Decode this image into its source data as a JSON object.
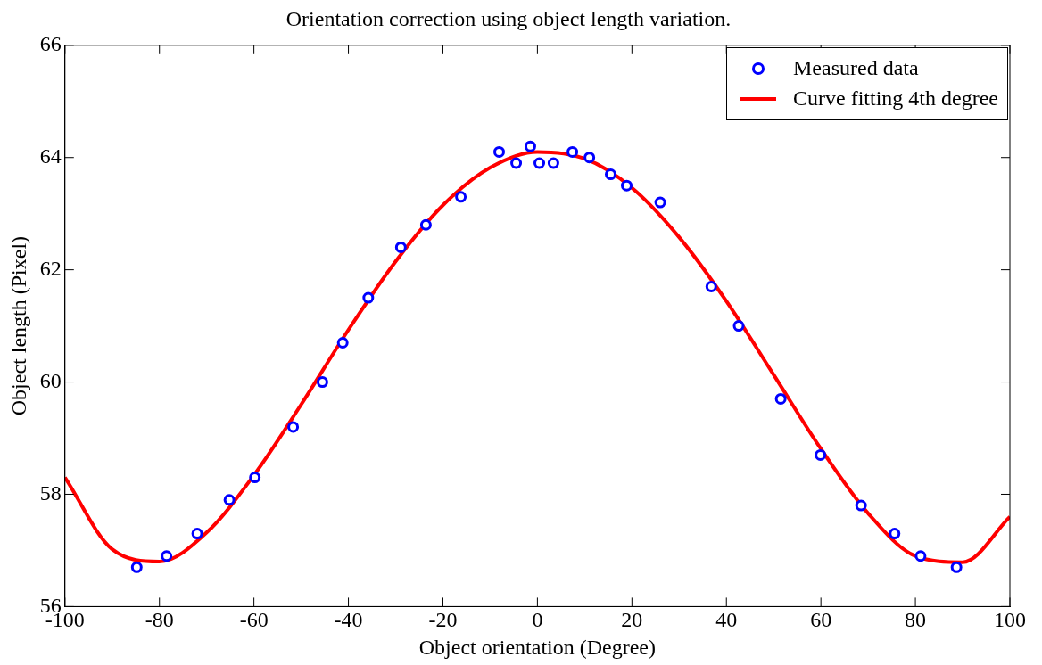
{
  "chart_data": {
    "type": "scatter",
    "title": "Orientation correction using object length variation.",
    "xlabel": "Object orientation (Degree)",
    "ylabel": "Object length (Pixel)",
    "xlim": [
      -100,
      100
    ],
    "xticks": [
      -100,
      -80,
      -60,
      -40,
      -20,
      0,
      20,
      40,
      60,
      80,
      100
    ],
    "ylim": [
      56,
      66
    ],
    "yticks": [
      56,
      58,
      60,
      62,
      64,
      66
    ],
    "grid": false,
    "legend": "top right",
    "series": [
      {
        "name": "Measured data",
        "marker": "circle",
        "color": "#0000ff",
        "x": [
          -84.8,
          -78.5,
          -72.0,
          -65.2,
          -59.8,
          -51.7,
          -45.5,
          -41.2,
          -35.8,
          -28.9,
          -23.6,
          -16.2,
          -8.1,
          -4.5,
          -1.5,
          0.4,
          3.4,
          7.4,
          11.0,
          15.5,
          18.9,
          26.0,
          36.8,
          42.6,
          51.5,
          59.9,
          68.5,
          75.6,
          81.1,
          88.7
        ],
        "values": [
          56.7,
          56.9,
          57.3,
          57.9,
          58.3,
          59.2,
          60.0,
          60.7,
          61.5,
          62.4,
          62.8,
          63.3,
          64.1,
          63.9,
          64.2,
          63.9,
          63.9,
          64.1,
          64.0,
          63.7,
          63.5,
          63.2,
          61.7,
          61.0,
          59.7,
          58.7,
          57.8,
          57.3,
          56.9,
          56.7
        ]
      },
      {
        "name": "Curve fitting 4th degree",
        "type": "line",
        "marker": "none",
        "color": "#ff0000",
        "x": [
          -100,
          -90,
          -80,
          -70,
          -60,
          -50,
          -40,
          -30,
          -20,
          -10,
          0,
          10,
          20,
          30,
          40,
          50,
          60,
          70,
          80,
          90,
          100
        ],
        "values": [
          58.3,
          57.02,
          56.8,
          57.32,
          58.34,
          59.6,
          60.93,
          62.15,
          63.15,
          63.82,
          64.1,
          63.98,
          63.46,
          62.58,
          61.44,
          60.13,
          58.81,
          57.66,
          56.9,
          56.79,
          57.6
        ]
      }
    ]
  }
}
